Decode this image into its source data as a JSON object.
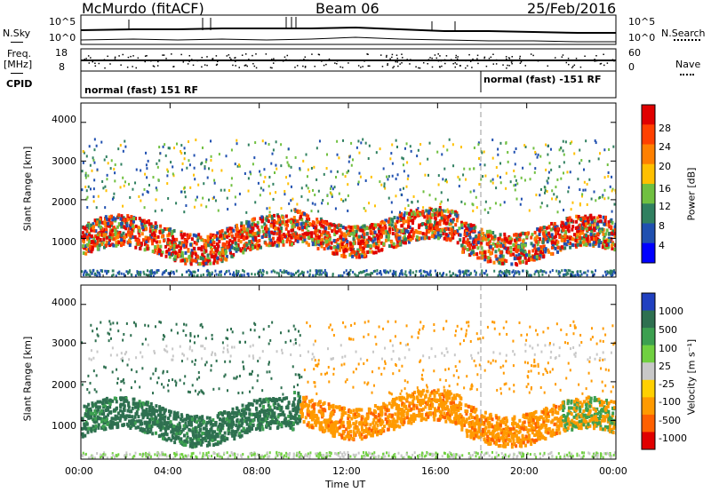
{
  "header": {
    "station": "McMurdo (fitACF)",
    "beam": "Beam 06",
    "date": "25/Feb/2016"
  },
  "top_panels": {
    "nsky_label": "N.Sky",
    "nsearch_label": "N.Search",
    "nsky_ticks": [
      "10^5",
      "10^0"
    ],
    "nsearch_ticks": [
      "10^5",
      "10^0"
    ],
    "freq_label_1": "Freq.",
    "freq_label_2": "[MHz]",
    "freq_ticks": [
      "18",
      "8"
    ],
    "nave_label": "Nave",
    "nave_ticks": [
      "60",
      "0"
    ],
    "cpid_label": "CPID",
    "cpid_segments": [
      {
        "text": "normal (fast) 151 RF",
        "start_hour": 0
      },
      {
        "text": "normal (fast) -151 RF",
        "start_hour": 18
      }
    ]
  },
  "chart_data": [
    {
      "type": "heatmap",
      "name": "power",
      "ylabel": "Slant Range [km]",
      "xlabel": "Time UT",
      "xlim": [
        0,
        24
      ],
      "ylim": [
        0,
        4500
      ],
      "yticks": [
        1000,
        2000,
        3000,
        4000
      ],
      "xticks": [
        "00:00",
        "04:00",
        "08:00",
        "12:00",
        "16:00",
        "20:00",
        "00:00"
      ],
      "colorbar": {
        "label": "Power [dB]",
        "ticks": [
          "28",
          "24",
          "20",
          "16",
          "12",
          "8",
          "4"
        ],
        "colors": [
          "#e00000",
          "#ff4000",
          "#ff8000",
          "#ffc000",
          "#70c040",
          "#308060",
          "#2050b0",
          "#0000ff"
        ]
      }
    },
    {
      "type": "heatmap",
      "name": "velocity",
      "ylabel": "Slant Range [km]",
      "xlabel": "Time UT",
      "xlim": [
        0,
        24
      ],
      "ylim": [
        0,
        4500
      ],
      "yticks": [
        1000,
        2000,
        3000,
        4000
      ],
      "xticks": [
        "00:00",
        "04:00",
        "08:00",
        "12:00",
        "16:00",
        "20:00",
        "00:00"
      ],
      "colorbar": {
        "label": "Velocity [m s⁻¹]",
        "ticks": [
          "1000",
          "500",
          "100",
          "25",
          "-25",
          "-100",
          "-500",
          "-1000"
        ],
        "colors": [
          "#2040c0",
          "#2e7050",
          "#3ca050",
          "#70d040",
          "#c8c8c8",
          "#ffd000",
          "#ff9a00",
          "#ff6000",
          "#e00000"
        ]
      }
    }
  ]
}
